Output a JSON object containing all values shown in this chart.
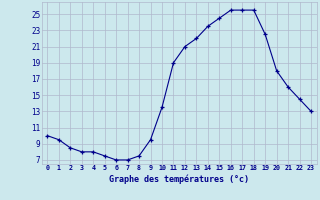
{
  "hours": [
    0,
    1,
    2,
    3,
    4,
    5,
    6,
    7,
    8,
    9,
    10,
    11,
    12,
    13,
    14,
    15,
    16,
    17,
    18,
    19,
    20,
    21,
    22,
    23
  ],
  "temperatures": [
    10.0,
    9.5,
    8.5,
    8.0,
    8.0,
    7.5,
    7.0,
    7.0,
    7.5,
    9.5,
    13.5,
    19.0,
    21.0,
    22.0,
    23.5,
    24.5,
    25.5,
    25.5,
    25.5,
    22.5,
    18.0,
    16.0,
    14.5,
    13.0
  ],
  "xlabel": "Graphe des températures (°c)",
  "ylabel_ticks": [
    7,
    9,
    11,
    13,
    15,
    17,
    19,
    21,
    23,
    25
  ],
  "ylim": [
    6.5,
    26.5
  ],
  "xlim": [
    -0.5,
    23.5
  ],
  "line_color": "#00008b",
  "marker": "+",
  "background_color": "#cce8ed",
  "grid_color": "#b0b8cc",
  "label_color": "#00008b"
}
